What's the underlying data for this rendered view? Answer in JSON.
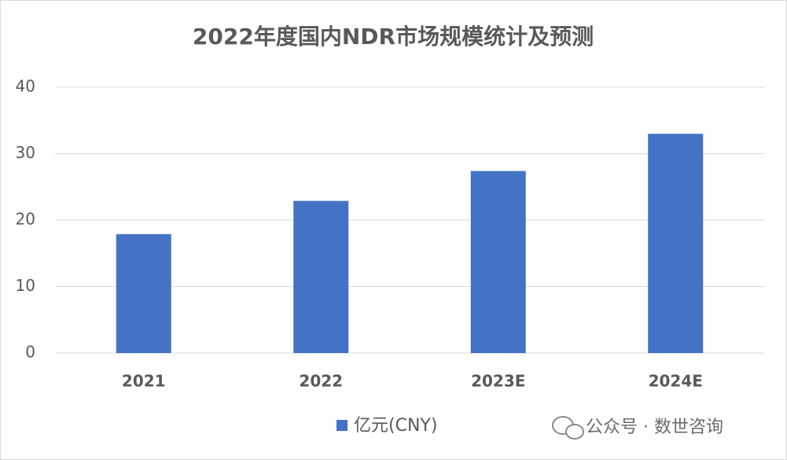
{
  "chart_data": {
    "type": "bar",
    "title": "2022年度国内NDR市场规模统计及预测",
    "categories": [
      "2021",
      "2022",
      "2023E",
      "2024E"
    ],
    "series": [
      {
        "name": "亿元(CNY)",
        "color": "#4472c4",
        "values": [
          17.9,
          22.9,
          27.4,
          33.0
        ]
      }
    ],
    "ylim": [
      0,
      40
    ],
    "yticks": [
      0,
      10,
      20,
      30,
      40
    ],
    "grid": true,
    "legend": "bottom",
    "watermark": "公众号 · 数世咨询"
  }
}
